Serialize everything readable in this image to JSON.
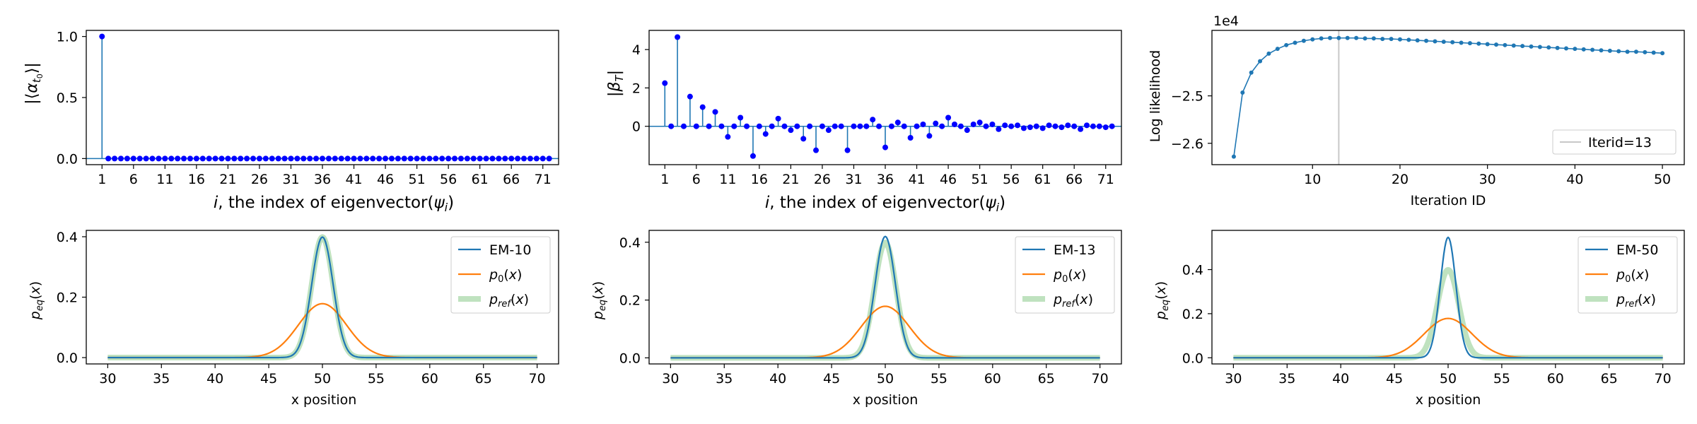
{
  "figure": {
    "chart_data": [
      {
        "type": "stem",
        "ylabel": "|⟨α_t0⟩|",
        "xlabel": "i, the index of eigenvector(ψ_i)",
        "xticks": [
          "1",
          "6",
          "11",
          "16",
          "21",
          "26",
          "31",
          "36",
          "41",
          "46",
          "51",
          "56",
          "61",
          "66",
          "71"
        ],
        "yticks": [
          "0.0",
          "0.5",
          "1.0"
        ],
        "ylim": [
          -0.05,
          1.05
        ],
        "xlim": [
          -1.5,
          73.5
        ],
        "x": [
          1,
          2,
          3,
          4,
          5,
          6,
          7,
          8,
          9,
          10,
          11,
          12,
          13,
          14,
          15,
          16,
          17,
          18,
          19,
          20,
          21,
          22,
          23,
          24,
          25,
          26,
          27,
          28,
          29,
          30,
          31,
          32,
          33,
          34,
          35,
          36,
          37,
          38,
          39,
          40,
          41,
          42,
          43,
          44,
          45,
          46,
          47,
          48,
          49,
          50,
          51,
          52,
          53,
          54,
          55,
          56,
          57,
          58,
          59,
          60,
          61,
          62,
          63,
          64,
          65,
          66,
          67,
          68,
          69,
          70,
          71,
          72
        ],
        "values": [
          1.0,
          0,
          0,
          0,
          0,
          0,
          0,
          0,
          0,
          0,
          0,
          0,
          0,
          0,
          0,
          0,
          0,
          0,
          0,
          0,
          0,
          0,
          0,
          0,
          0,
          0,
          0,
          0,
          0,
          0,
          0,
          0,
          0,
          0,
          0,
          0,
          0,
          0,
          0,
          0,
          0,
          0,
          0,
          0,
          0,
          0,
          0,
          0,
          0,
          0,
          0,
          0,
          0,
          0,
          0,
          0,
          0,
          0,
          0,
          0,
          0,
          0,
          0,
          0,
          0,
          0,
          0,
          0,
          0,
          0,
          0,
          0
        ],
        "colors": {
          "stem": "#1f77b4",
          "marker": "#0000ff"
        }
      },
      {
        "type": "stem",
        "ylabel": "|β_T|",
        "xlabel": "i, the index of eigenvector(ψ_i)",
        "xticks": [
          "1",
          "6",
          "11",
          "16",
          "21",
          "26",
          "31",
          "36",
          "41",
          "46",
          "51",
          "56",
          "61",
          "66",
          "71"
        ],
        "yticks": [
          "0",
          "2",
          "4"
        ],
        "ylim": [
          -2.0,
          5.0
        ],
        "xlim": [
          -1.5,
          73.5
        ],
        "x": [
          1,
          2,
          3,
          4,
          5,
          6,
          7,
          8,
          9,
          10,
          11,
          12,
          13,
          14,
          15,
          16,
          17,
          18,
          19,
          20,
          21,
          22,
          23,
          24,
          25,
          26,
          27,
          28,
          29,
          30,
          31,
          32,
          33,
          34,
          35,
          36,
          37,
          38,
          39,
          40,
          41,
          42,
          43,
          44,
          45,
          46,
          47,
          48,
          49,
          50,
          51,
          52,
          53,
          54,
          55,
          56,
          57,
          58,
          59,
          60,
          61,
          62,
          63,
          64,
          65,
          66,
          67,
          68,
          69,
          70,
          71,
          72
        ],
        "values": [
          2.25,
          0,
          4.65,
          0,
          1.55,
          0,
          1.0,
          0,
          0.75,
          0,
          -0.55,
          0,
          0.45,
          0,
          -1.55,
          0,
          -0.4,
          0,
          0.4,
          0,
          -0.2,
          0,
          -0.65,
          0,
          -1.25,
          0,
          -0.2,
          0,
          0,
          -1.25,
          0,
          0,
          0,
          0.35,
          0,
          -1.1,
          0,
          0.2,
          0,
          -0.6,
          0,
          0.1,
          -0.5,
          0.15,
          0,
          0.45,
          0.1,
          0,
          -0.2,
          0.1,
          0.2,
          0,
          0.1,
          -0.15,
          0.05,
          0,
          0.05,
          -0.1,
          -0.05,
          0,
          -0.1,
          0.05,
          0,
          -0.05,
          0.05,
          0,
          -0.15,
          0.05,
          0,
          0,
          -0.05,
          0
        ],
        "colors": {
          "stem": "#1f77b4",
          "marker": "#0000ff"
        }
      },
      {
        "type": "line",
        "ylabel": "Log likelihood",
        "xlabel": "Iteration ID",
        "offset_text": "1e4",
        "xticks": [
          "10",
          "20",
          "30",
          "40",
          "50"
        ],
        "yticks": [
          "-2.6",
          "-2.5"
        ],
        "xlim": [
          -1.5,
          52.5
        ],
        "ylim": [
          -2.645,
          -2.362
        ],
        "x": [
          1,
          2,
          3,
          4,
          5,
          6,
          7,
          8,
          9,
          10,
          11,
          12,
          13,
          14,
          15,
          16,
          17,
          18,
          19,
          20,
          21,
          22,
          23,
          24,
          25,
          26,
          27,
          28,
          29,
          30,
          31,
          32,
          33,
          34,
          35,
          36,
          37,
          38,
          39,
          40,
          41,
          42,
          43,
          44,
          45,
          46,
          47,
          48,
          49,
          50
        ],
        "y": [
          -2.628,
          -2.493,
          -2.451,
          -2.427,
          -2.411,
          -2.401,
          -2.393,
          -2.388,
          -2.384,
          -2.381,
          -2.379,
          -2.378,
          -2.378,
          -2.378,
          -2.378,
          -2.379,
          -2.379,
          -2.38,
          -2.38,
          -2.381,
          -2.382,
          -2.383,
          -2.384,
          -2.385,
          -2.386,
          -2.387,
          -2.388,
          -2.389,
          -2.39,
          -2.391,
          -2.392,
          -2.393,
          -2.394,
          -2.395,
          -2.396,
          -2.397,
          -2.398,
          -2.399,
          -2.4,
          -2.401,
          -2.402,
          -2.403,
          -2.404,
          -2.405,
          -2.406,
          -2.407,
          -2.407,
          -2.408,
          -2.409,
          -2.41
        ],
        "vline": {
          "x": 13,
          "label": "Iterid=13",
          "color": "#c8c8c8"
        },
        "legend_position": "lower-right",
        "colors": {
          "line": "#1f77b4"
        }
      },
      {
        "type": "line",
        "ylabel": "p_eq(x)",
        "xlabel": "x position",
        "xticks": [
          "30",
          "35",
          "40",
          "45",
          "50",
          "55",
          "60",
          "65",
          "70"
        ],
        "yticks": [
          "0.0",
          "0.2",
          "0.4"
        ],
        "xlim": [
          28,
          72
        ],
        "ylim": [
          -0.021,
          0.421
        ],
        "series": [
          {
            "name": "EM-10",
            "kind": "gaussian",
            "mean": 50,
            "sd": 1.0,
            "color": "#1f77b4"
          },
          {
            "name": "p_0(x)",
            "kind": "gaussian",
            "mean": 50,
            "sd": 2.236,
            "color": "#ff7f0e"
          },
          {
            "name": "p_ref(x)",
            "kind": "gaussian",
            "mean": 50,
            "sd": 1.0,
            "color": "#2ca02c",
            "alpha": 0.3,
            "width": 8
          }
        ],
        "legend_position": "top-right"
      },
      {
        "type": "line",
        "ylabel": "p_eq(x)",
        "xlabel": "x position",
        "xticks": [
          "30",
          "35",
          "40",
          "45",
          "50",
          "55",
          "60",
          "65",
          "70"
        ],
        "yticks": [
          "0.0",
          "0.2",
          "0.4"
        ],
        "xlim": [
          28,
          72
        ],
        "ylim": [
          -0.021,
          0.441
        ],
        "series": [
          {
            "name": "EM-13",
            "kind": "gaussian",
            "mean": 50,
            "sd": 0.95,
            "color": "#1f77b4"
          },
          {
            "name": "p_0(x)",
            "kind": "gaussian",
            "mean": 50,
            "sd": 2.236,
            "color": "#ff7f0e"
          },
          {
            "name": "p_ref(x)",
            "kind": "gaussian",
            "mean": 50,
            "sd": 1.0,
            "color": "#2ca02c",
            "alpha": 0.3,
            "width": 8
          }
        ],
        "legend_position": "top-right"
      },
      {
        "type": "line",
        "ylabel": "p_eq(x)",
        "xlabel": "x position",
        "xticks": [
          "30",
          "35",
          "40",
          "45",
          "50",
          "55",
          "60",
          "65",
          "70"
        ],
        "yticks": [
          "0.0",
          "0.2",
          "0.4"
        ],
        "xlim": [
          28,
          72
        ],
        "ylim": [
          -0.028,
          0.578
        ],
        "series": [
          {
            "name": "EM-50",
            "kind": "gaussian",
            "mean": 50,
            "sd": 0.73,
            "color": "#1f77b4"
          },
          {
            "name": "p_0(x)",
            "kind": "gaussian",
            "mean": 50,
            "sd": 2.236,
            "color": "#ff7f0e"
          },
          {
            "name": "p_ref(x)",
            "kind": "gaussian",
            "mean": 50,
            "sd": 1.0,
            "color": "#2ca02c",
            "alpha": 0.3,
            "width": 8
          }
        ],
        "legend_position": "top-right"
      }
    ]
  }
}
